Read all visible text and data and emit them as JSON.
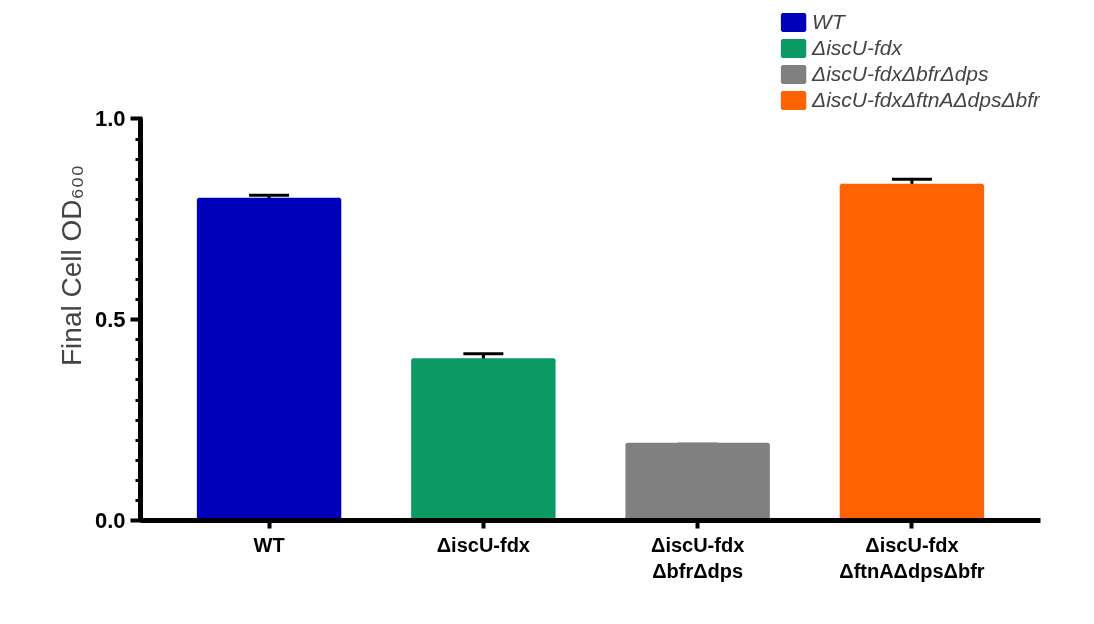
{
  "chart_data": {
    "type": "bar",
    "ylabel": "Final Cell OD₆₀₀",
    "categories": [
      "WT",
      "ΔiscU-fdx",
      "ΔiscU-fdx\nΔbfrΔdps",
      "ΔiscU-fdx\nΔftnAΔdpsΔbfr"
    ],
    "series": [
      {
        "name": "WT",
        "color": "#0000bb",
        "values": [
          0.8,
          null,
          null,
          null
        ],
        "errors": [
          [
            0.8,
            0.81
          ],
          null,
          null,
          null
        ]
      },
      {
        "name": "ΔiscU-fdx",
        "color": "#0b9a63",
        "values": [
          null,
          0.4,
          null,
          null
        ],
        "errors": [
          null,
          [
            0.4,
            0.415
          ],
          null,
          null
        ]
      },
      {
        "name": "ΔiscU-fdxΔbfrΔdps",
        "color": "#808080",
        "values": [
          null,
          null,
          0.19,
          null
        ],
        "errors": [
          null,
          null,
          [
            0.19,
            0.19
          ],
          null
        ]
      },
      {
        "name": "ΔiscU-fdxΔftnAΔdpsΔbfr",
        "color": "#ff6200",
        "values": [
          null,
          null,
          null,
          0.835
        ],
        "errors": [
          null,
          null,
          null,
          [
            0.835,
            0.85
          ]
        ]
      }
    ],
    "ylim": [
      0,
      1.0
    ],
    "yticks": [
      {
        "value": 0,
        "label": "0.0"
      },
      0.5,
      {
        "value": 1.0,
        "label": "1.0"
      }
    ],
    "grid": false,
    "legend": "top right"
  }
}
